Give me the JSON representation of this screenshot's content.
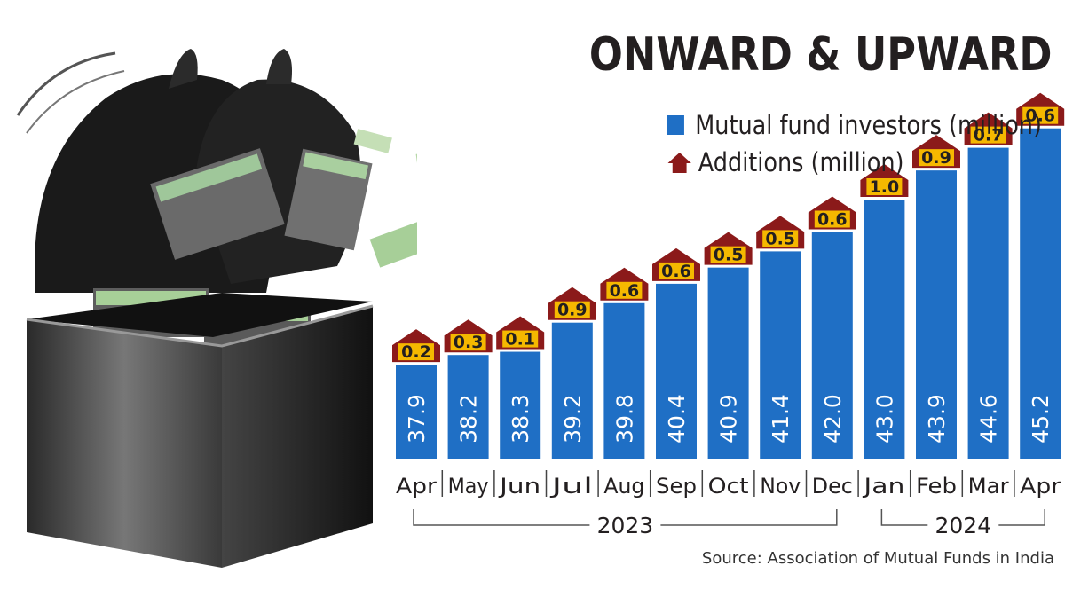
{
  "chart_data": {
    "type": "bar",
    "title": "ONWARD & UPWARD",
    "categories": [
      "Apr",
      "May",
      "Jun",
      "Jul",
      "Aug",
      "Sep",
      "Oct",
      "Nov",
      "Dec",
      "Jan",
      "Feb",
      "Mar",
      "Apr"
    ],
    "series": [
      {
        "name": "Mutual fund investors (million)",
        "values": [
          37.9,
          38.2,
          38.3,
          39.2,
          39.8,
          40.4,
          40.9,
          41.4,
          42.0,
          43.0,
          43.9,
          44.6,
          45.2
        ]
      },
      {
        "name": "Additions (million)",
        "values": [
          0.2,
          0.3,
          0.1,
          0.9,
          0.6,
          0.6,
          0.5,
          0.5,
          0.6,
          1.0,
          0.9,
          0.7,
          0.6
        ]
      }
    ],
    "year_groups": [
      {
        "label": "2023",
        "from": 0,
        "to": 8
      },
      {
        "label": "2024",
        "from": 9,
        "to": 12
      }
    ],
    "value_labels": [
      "37.9",
      "38.2",
      "38.3",
      "39.2",
      "39.8",
      "40.4",
      "40.9",
      "41.4",
      "42.0",
      "43.0",
      "43.9",
      "44.6",
      "45.2"
    ],
    "addition_labels": [
      "0.2",
      "0.3",
      "0.1",
      "0.9",
      "0.6",
      "0.6",
      "0.5",
      "0.5",
      "0.6",
      "1.0",
      "0.9",
      "0.7",
      "0.6"
    ],
    "source": "Source: Association of Mutual Funds in India",
    "colors": {
      "bar": "#1f6fc5",
      "addition": "#8b1a1a",
      "addition_label_bg": "#f5b800",
      "text": "#231f20"
    }
  }
}
